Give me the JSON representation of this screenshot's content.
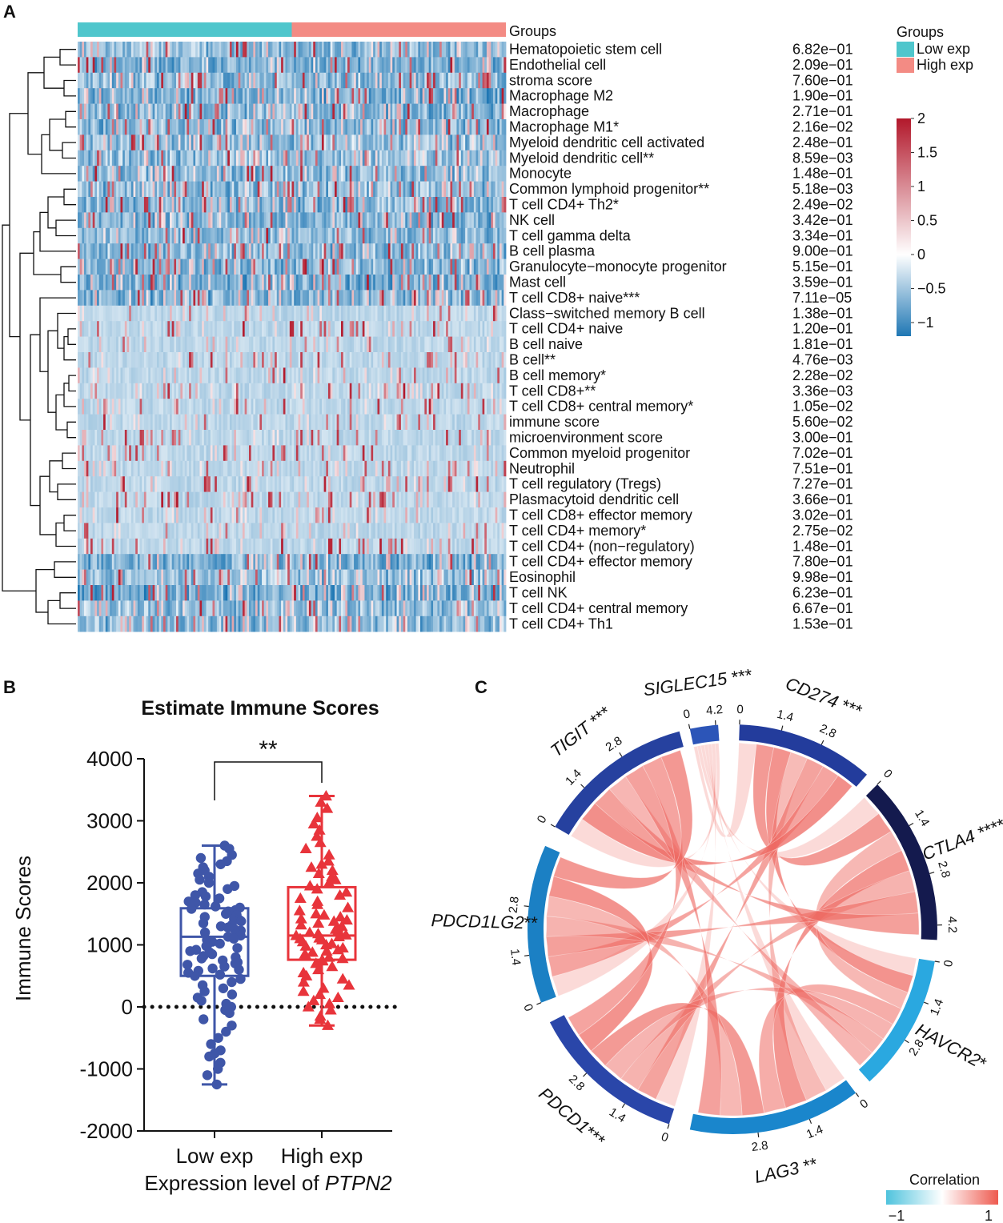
{
  "panel_labels": {
    "a": "A",
    "b": "B",
    "c": "C"
  },
  "colors": {
    "low_group": "#4fc6cc",
    "high_group": "#f38b84",
    "heat_low": "#1f77b4",
    "heat_mid": "#ffffff",
    "heat_high": "#b2182b",
    "scatter_low": "#3f56a8",
    "scatter_high": "#e8343b",
    "chord": "#ee6a63",
    "corr_low": "#4fc3dd",
    "corr_high": "#ee5a4f"
  },
  "chart_data": [
    {
      "type": "heatmap",
      "panel": "A",
      "group_header": "Groups",
      "legend_title": "Groups",
      "groups": [
        "Low exp",
        "High exp"
      ],
      "samples_per_group": 100,
      "rows": [
        {
          "label": "Hematopoietic stem cell",
          "p": "6.82e−01"
        },
        {
          "label": "Endothelial cell",
          "p": "2.09e−01"
        },
        {
          "label": "stroma score",
          "p": "7.60e−01"
        },
        {
          "label": "Macrophage M2",
          "p": "1.90e−01"
        },
        {
          "label": "Macrophage",
          "p": "2.71e−01"
        },
        {
          "label": "Macrophage M1*",
          "p": "2.16e−02"
        },
        {
          "label": "Myeloid dendritic cell activated",
          "p": "2.48e−01"
        },
        {
          "label": "Myeloid dendritic cell**",
          "p": "8.59e−03"
        },
        {
          "label": "Monocyte",
          "p": "1.48e−01"
        },
        {
          "label": "Common lymphoid progenitor**",
          "p": "5.18e−03"
        },
        {
          "label": "T cell CD4+ Th2*",
          "p": "2.49e−02"
        },
        {
          "label": "NK cell",
          "p": "3.42e−01"
        },
        {
          "label": "T cell gamma delta",
          "p": "3.34e−01"
        },
        {
          "label": "B cell plasma",
          "p": "9.00e−01"
        },
        {
          "label": "Granulocyte−monocyte progenitor",
          "p": "5.15e−01"
        },
        {
          "label": "Mast cell",
          "p": "3.59e−01"
        },
        {
          "label": "T cell CD8+ naive***",
          "p": "7.11e−05"
        },
        {
          "label": "Class−switched memory B cell",
          "p": "1.38e−01"
        },
        {
          "label": "T cell CD4+ naive",
          "p": "1.20e−01"
        },
        {
          "label": "B cell naive",
          "p": "1.81e−01"
        },
        {
          "label": "B cell**",
          "p": "4.76e−03"
        },
        {
          "label": "B cell memory*",
          "p": "2.28e−02"
        },
        {
          "label": "T cell CD8+**",
          "p": "3.36e−03"
        },
        {
          "label": "T cell CD8+ central memory*",
          "p": "1.05e−02"
        },
        {
          "label": "immune score",
          "p": "5.60e−02"
        },
        {
          "label": "microenvironment score",
          "p": "3.00e−01"
        },
        {
          "label": "Common myeloid progenitor",
          "p": "7.02e−01"
        },
        {
          "label": "Neutrophil",
          "p": "7.51e−01"
        },
        {
          "label": "T cell regulatory (Tregs)",
          "p": "7.27e−01"
        },
        {
          "label": "Plasmacytoid dendritic cell",
          "p": "3.66e−01"
        },
        {
          "label": "T cell CD8+ effector memory",
          "p": "3.02e−01"
        },
        {
          "label": "T cell CD4+ memory*",
          "p": "2.75e−02"
        },
        {
          "label": "T cell CD4+ (non−regulatory)",
          "p": "1.48e−01"
        },
        {
          "label": "T cell CD4+ effector memory",
          "p": "7.80e−01"
        },
        {
          "label": "Eosinophil",
          "p": "9.98e−01"
        },
        {
          "label": "T cell NK",
          "p": "6.23e−01"
        },
        {
          "label": "T cell CD4+ central memory",
          "p": "6.67e−01"
        },
        {
          "label": "T cell CD4+ Th1",
          "p": "1.53e−01"
        }
      ],
      "color_scale": {
        "min": -1.2,
        "max": 2.0,
        "ticks": [
          "2",
          "1.5",
          "1",
          "0.5",
          "0",
          "−0.5",
          "−1"
        ],
        "tick_values": [
          2,
          1.5,
          1,
          0.5,
          0,
          -0.5,
          -1
        ]
      }
    },
    {
      "type": "scatter",
      "panel": "B",
      "title": "Estimate Immune Scores",
      "ylabel": "Immune Scores",
      "xlabel_prefix": "Expression level of ",
      "xlabel_gene": "PTPN2",
      "categories": [
        "Low exp",
        "High exp"
      ],
      "ylim": [
        -2000,
        4000
      ],
      "yticks": [
        "4000",
        "3000",
        "2000",
        "1000",
        "0",
        "-1000",
        "-2000"
      ],
      "ytick_values": [
        4000,
        3000,
        2000,
        1000,
        0,
        -1000,
        -2000
      ],
      "significance": "**",
      "boxes": [
        {
          "name": "Low exp",
          "min": -1250,
          "q1": 500,
          "median": 1130,
          "q3": 1590,
          "max": 2600
        },
        {
          "name": "High exp",
          "min": -300,
          "q1": 760,
          "median": 1150,
          "q3": 1930,
          "max": 3400
        }
      ],
      "series": [
        {
          "name": "Low exp",
          "marker": "circle",
          "values": [
            2600,
            2550,
            2450,
            2400,
            2350,
            2300,
            2250,
            2200,
            2150,
            2100,
            2050,
            2000,
            1950,
            1900,
            1850,
            1800,
            1780,
            1750,
            1700,
            1680,
            1650,
            1620,
            1600,
            1580,
            1560,
            1540,
            1500,
            1480,
            1450,
            1420,
            1400,
            1380,
            1350,
            1320,
            1300,
            1280,
            1250,
            1230,
            1200,
            1180,
            1150,
            1130,
            1100,
            1080,
            1050,
            1020,
            1000,
            980,
            950,
            920,
            900,
            880,
            850,
            820,
            800,
            780,
            750,
            720,
            700,
            680,
            650,
            620,
            600,
            580,
            550,
            520,
            500,
            450,
            400,
            350,
            300,
            250,
            200,
            150,
            100,
            50,
            0,
            -50,
            -100,
            -200,
            -300,
            -400,
            -500,
            -600,
            -700,
            -750,
            -800,
            -900,
            -1000,
            -1100,
            -1250
          ]
        },
        {
          "name": "High exp",
          "marker": "triangle",
          "values": [
            3400,
            3300,
            3200,
            3050,
            2950,
            2850,
            2750,
            2650,
            2550,
            2450,
            2350,
            2300,
            2250,
            2200,
            2150,
            2100,
            2050,
            2000,
            1950,
            1900,
            1850,
            1800,
            1750,
            1700,
            1650,
            1600,
            1550,
            1500,
            1480,
            1450,
            1420,
            1400,
            1380,
            1350,
            1320,
            1300,
            1280,
            1250,
            1230,
            1200,
            1180,
            1160,
            1150,
            1130,
            1110,
            1100,
            1080,
            1050,
            1020,
            1000,
            980,
            950,
            920,
            900,
            880,
            850,
            820,
            800,
            780,
            760,
            740,
            700,
            650,
            600,
            550,
            500,
            450,
            400,
            350,
            300,
            250,
            200,
            150,
            100,
            50,
            0,
            -50,
            -150,
            -200,
            -300
          ]
        }
      ]
    },
    {
      "type": "chord",
      "panel": "C",
      "sectors": [
        {
          "name": "SIGLEC15",
          "stars": " ***",
          "color": "#2c55b8",
          "ticks": [
            {
              "v": 0,
              "label": "0"
            },
            {
              "v": 4.2,
              "label": "4.2"
            }
          ]
        },
        {
          "name": "CD274",
          "stars": " ***",
          "color": "#233c9c",
          "ticks": [
            {
              "v": 0,
              "label": "0"
            },
            {
              "v": 1.4,
              "label": "1.4"
            },
            {
              "v": 2.8,
              "label": "2.8"
            }
          ]
        },
        {
          "name": "CTLA4",
          "stars": " ****",
          "color": "#141a4e",
          "ticks": [
            {
              "v": 0,
              "label": "0"
            },
            {
              "v": 1.4,
              "label": "1.4"
            },
            {
              "v": 2.8,
              "label": "2.8"
            },
            {
              "v": 4.2,
              "label": "4.2"
            }
          ]
        },
        {
          "name": "HAVCR2",
          "stars": "*",
          "color": "#2aa8e0",
          "ticks": [
            {
              "v": 0,
              "label": "0"
            },
            {
              "v": 1.4,
              "label": "1.4"
            },
            {
              "v": 2.8,
              "label": "2.8"
            }
          ]
        },
        {
          "name": "LAG3",
          "stars": " **",
          "color": "#1a86cc",
          "ticks": [
            {
              "v": 0,
              "label": "0"
            },
            {
              "v": 1.4,
              "label": "1.4"
            },
            {
              "v": 2.8,
              "label": "2.8"
            }
          ]
        },
        {
          "name": "PDCD1",
          "stars": "***",
          "color": "#2a46a9",
          "ticks": [
            {
              "v": 0,
              "label": "0"
            },
            {
              "v": 1.4,
              "label": "1.4"
            },
            {
              "v": 2.8,
              "label": "2.8"
            }
          ]
        },
        {
          "name": "PDCD1LG2",
          "stars": "**",
          "color": "#1b80c4",
          "ticks": [
            {
              "v": 0,
              "label": "0"
            },
            {
              "v": 1.4,
              "label": "1.4"
            },
            {
              "v": 2.8,
              "label": "2.8"
            }
          ]
        },
        {
          "name": "TIGIT",
          "stars": " ***",
          "color": "#26419f",
          "ticks": [
            {
              "v": 0,
              "label": "0"
            },
            {
              "v": 1.4,
              "label": "1.4"
            },
            {
              "v": 2.8,
              "label": "2.8"
            }
          ]
        }
      ],
      "legend_title": "Correlation",
      "legend_min": "−1",
      "legend_max": "1"
    }
  ]
}
